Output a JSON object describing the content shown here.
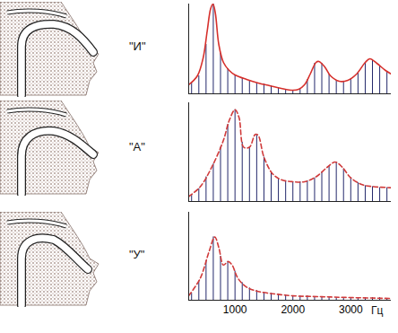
{
  "chart_data": [
    {
      "type": "line",
      "title": "\"И\"",
      "xlim": [
        200,
        3700
      ],
      "ylim": [
        0,
        100
      ],
      "tick_labels": false,
      "grid": false,
      "series": [
        {
          "type": "bar",
          "color": "#23286b",
          "x": [
            250,
            375,
            500,
            625,
            750,
            875,
            1000,
            1125,
            1250,
            1375,
            1500,
            1625,
            1750,
            1875,
            2000,
            2125,
            2250,
            2375,
            2500,
            2625,
            2750,
            2875,
            3000,
            3125,
            3250,
            3375,
            3500,
            3625
          ],
          "values": [
            12,
            20,
            55,
            100,
            45,
            28,
            21,
            18,
            15,
            12,
            11,
            9,
            7,
            5,
            4,
            6,
            16,
            34,
            34,
            22,
            15,
            14,
            17,
            24,
            35,
            38,
            31,
            25
          ]
        },
        {
          "type": "line",
          "color": "#d6302c",
          "line_style": "solid",
          "x": [
            200,
            350,
            450,
            520,
            580,
            620,
            660,
            720,
            800,
            900,
            1000,
            1200,
            1400,
            1600,
            1800,
            2000,
            2100,
            2200,
            2300,
            2400,
            2450,
            2550,
            2650,
            2800,
            2950,
            3100,
            3250,
            3330,
            3450,
            3600,
            3700
          ],
          "values": [
            10,
            20,
            40,
            70,
            95,
            100,
            90,
            55,
            35,
            26,
            21,
            16,
            12,
            9,
            6,
            4,
            5,
            10,
            22,
            35,
            36,
            30,
            20,
            14,
            15,
            22,
            35,
            39,
            34,
            26,
            22
          ]
        }
      ]
    },
    {
      "type": "line",
      "title": "\"А\"",
      "xlim": [
        200,
        3700
      ],
      "ylim": [
        0,
        100
      ],
      "tick_labels": false,
      "grid": false,
      "series": [
        {
          "type": "bar",
          "color": "#23286b",
          "x": [
            250,
            375,
            500,
            625,
            750,
            875,
            1000,
            1125,
            1250,
            1375,
            1500,
            1625,
            1750,
            1875,
            2000,
            2125,
            2250,
            2375,
            2500,
            2625,
            2750,
            2875,
            3000,
            3125,
            3250,
            3375,
            3500,
            3625
          ],
          "values": [
            7,
            13,
            25,
            38,
            55,
            78,
            93,
            60,
            55,
            68,
            45,
            30,
            23,
            21,
            20,
            20,
            21,
            24,
            30,
            36,
            40,
            33,
            24,
            19,
            16,
            15,
            14,
            14
          ]
        },
        {
          "type": "line",
          "color": "#d03a3a",
          "line_style": "dashed",
          "x": [
            200,
            400,
            600,
            800,
            900,
            1000,
            1070,
            1150,
            1250,
            1350,
            1400,
            1500,
            1650,
            1800,
            2000,
            2200,
            2400,
            2600,
            2730,
            2850,
            3000,
            3200,
            3400,
            3700
          ],
          "values": [
            5,
            15,
            35,
            62,
            82,
            93,
            85,
            55,
            55,
            68,
            67,
            45,
            28,
            22,
            20,
            20,
            25,
            35,
            40,
            35,
            24,
            17,
            15,
            14
          ]
        }
      ]
    },
    {
      "type": "line",
      "title": "\"У\"",
      "xlim": [
        200,
        3700
      ],
      "ylim": [
        0,
        100
      ],
      "xticks": [
        1000,
        2000,
        3000
      ],
      "xlabel": "Гц",
      "tick_labels": "x",
      "grid": false,
      "series": [
        {
          "type": "bar",
          "color": "#23286b",
          "x": [
            250,
            375,
            500,
            625,
            750,
            875,
            1000,
            1125,
            1250,
            1375,
            1500,
            1625,
            1750,
            1875,
            2000,
            2125,
            2250,
            2375,
            2500,
            2625,
            2750,
            2875,
            3000,
            3125,
            3250,
            3375,
            3500,
            3625
          ],
          "values": [
            8,
            22,
            45,
            72,
            50,
            44,
            33,
            20,
            14,
            11,
            9,
            8,
            7,
            6,
            5,
            5,
            5,
            4,
            4,
            4,
            3,
            3,
            3,
            3,
            3,
            3,
            3,
            2
          ]
        },
        {
          "type": "line",
          "color": "#d03a3a",
          "line_style": "dashed",
          "x": [
            200,
            400,
            550,
            650,
            720,
            800,
            880,
            950,
            1050,
            1200,
            1400,
            1700,
            2000,
            2500,
            3000,
            3700
          ],
          "values": [
            5,
            25,
            55,
            72,
            60,
            40,
            44,
            40,
            25,
            15,
            10,
            7,
            5,
            4,
            3,
            2
          ]
        }
      ]
    }
  ]
}
